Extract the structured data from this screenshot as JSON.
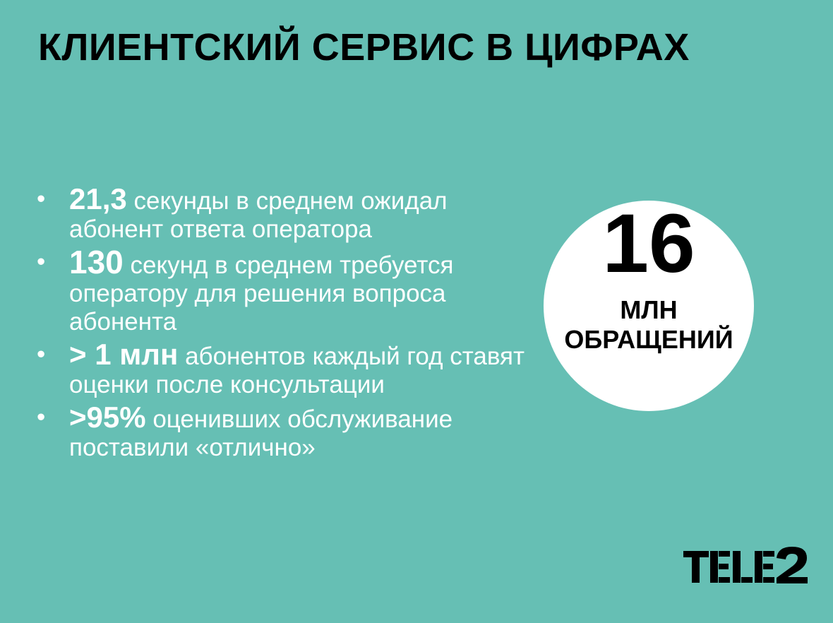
{
  "title": "КЛИЕНТСКИЙ СЕРВИС В ЦИФРАХ",
  "bullet_symbol": "•",
  "items": [
    {
      "value": "21,3",
      "text": " секунды в среднем ожидал абонент ответа оператора"
    },
    {
      "value": "130",
      "text": " секунд в среднем требуется оператору для решения вопроса абонента"
    },
    {
      "value": "> 1 млн",
      "text": " абонентов каждый год ставят оценки после консультации"
    },
    {
      "value": ">95%",
      "text": " оценивших обслуживание поставили «отлично»"
    }
  ],
  "highlight": {
    "number": "16",
    "line1": "МЛН",
    "line2": "ОБРАЩЕНИЙ"
  },
  "logo": {
    "text": "TELE2"
  },
  "colors": {
    "background": "#66bfb4",
    "text": "#ffffff",
    "title": "#000000",
    "circle": "#ffffff"
  }
}
